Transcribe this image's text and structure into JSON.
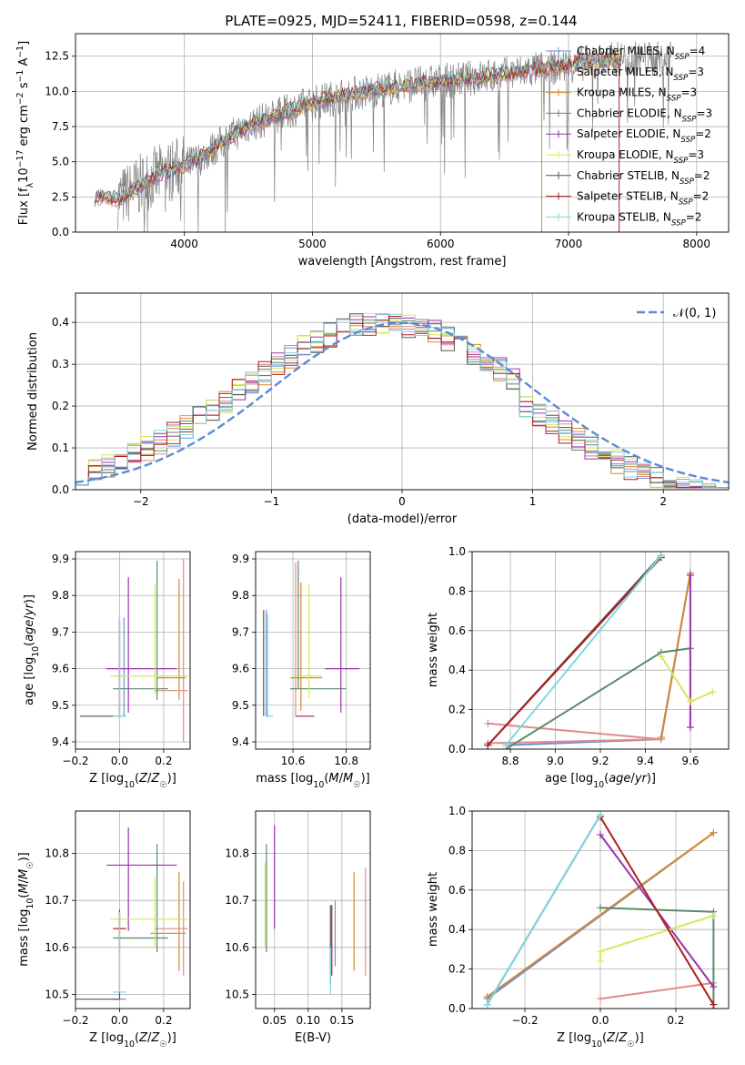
{
  "chart_data": [
    {
      "id": "spectrum",
      "type": "line",
      "title": "PLATE=0925, MJD=52411, FIBERID=0598, z=0.144",
      "xlabel": "wavelength [Angstrom, rest frame]",
      "ylabel": "Flux [f_λ 10^-17 erg cm^-2 s^-1 A^-1]",
      "xlim": [
        3150,
        8250
      ],
      "ylim": [
        0,
        14.1
      ],
      "xticks": [
        4000,
        5000,
        6000,
        7000,
        8000
      ],
      "yticks": [
        0.0,
        2.5,
        5.0,
        7.5,
        10.0,
        12.5
      ],
      "legend_position": "top-right",
      "series": [
        {
          "name": "Chabrier MILES, N_SSP=4",
          "color": "#6f8fd8"
        },
        {
          "name": "Salpeter MILES, N_SSP=3",
          "color": "#e08a8a"
        },
        {
          "name": "Kroupa MILES, N_SSP=3",
          "color": "#d7882f"
        },
        {
          "name": "Chabrier ELODIE, N_SSP=3",
          "color": "#5a8a6a"
        },
        {
          "name": "Salpeter ELODIE, N_SSP=2",
          "color": "#9a32b0"
        },
        {
          "name": "Kroupa ELODIE, N_SSP=3",
          "color": "#d6e85a"
        },
        {
          "name": "Chabrier STELIB, N_SSP=2",
          "color": "#555555"
        },
        {
          "name": "Salpeter STELIB, N_SSP=2",
          "color": "#b01e1e"
        },
        {
          "name": "Kroupa STELIB, N_SSP=2",
          "color": "#7fd8e0"
        }
      ],
      "observed": {
        "color": "#808080"
      },
      "model_x": [
        3300,
        3500,
        3700,
        3900,
        4100,
        4300,
        4500,
        4700,
        4900,
        5100,
        5300,
        5500,
        5700,
        5900,
        6100,
        6300,
        6500,
        6700,
        6900,
        7100,
        7300,
        7400
      ],
      "model_y": [
        2.5,
        2.4,
        3.6,
        4.4,
        5.1,
        6.4,
        7.6,
        8.2,
        8.9,
        9.4,
        9.8,
        10.1,
        10.4,
        10.6,
        10.8,
        11.0,
        11.2,
        11.5,
        11.7,
        12.0,
        12.2,
        12.3
      ]
    },
    {
      "id": "residuals",
      "type": "histogram",
      "xlabel": "(data-model)/error",
      "ylabel": "Normed distribution",
      "xlim": [
        -2.5,
        2.5
      ],
      "ylim": [
        0,
        0.47
      ],
      "xticks": [
        -2,
        -1,
        0,
        1,
        2
      ],
      "yticks": [
        0.0,
        0.1,
        0.2,
        0.3,
        0.4
      ],
      "reference": {
        "name": "𝒩(0, 1)",
        "mean": 0,
        "sigma": 1,
        "color": "#5a8ad6",
        "style": "dashed"
      },
      "legend_position": "top-right",
      "bin_width": 0.1
    },
    {
      "id": "age-vs-Z",
      "type": "scatter",
      "xlabel": "Z [log10(Z/Z☉)]",
      "ylabel": "age  [log10(age/yr)]",
      "xlim": [
        -0.2,
        0.32
      ],
      "ylim": [
        9.38,
        9.92
      ],
      "xticks": [
        -0.2,
        0.0,
        0.2
      ],
      "yticks": [
        9.4,
        9.5,
        9.6,
        9.7,
        9.8,
        9.9
      ],
      "points": [
        {
          "series": 0,
          "x": 0.02,
          "y": 9.47,
          "xerr": [
            0.03,
            0.01
          ],
          "yerr": [
            0.0,
            0.27
          ]
        },
        {
          "series": 1,
          "x": 0.29,
          "y": 9.54,
          "xerr": [
            0.13,
            0.02
          ],
          "yerr": [
            0.14,
            0.36
          ]
        },
        {
          "series": 2,
          "x": 0.27,
          "y": 9.575,
          "xerr": [
            0.1,
            0.03
          ],
          "yerr": [
            0.06,
            0.27
          ]
        },
        {
          "series": 3,
          "x": 0.17,
          "y": 9.545,
          "xerr": [
            0.2,
            0.05
          ],
          "yerr": [
            0.03,
            0.35
          ]
        },
        {
          "series": 4,
          "x": 0.04,
          "y": 9.6,
          "xerr": [
            0.1,
            0.22
          ],
          "yerr": [
            0.12,
            0.25
          ]
        },
        {
          "series": 5,
          "x": 0.16,
          "y": 9.58,
          "xerr": [
            0.2,
            0.15
          ],
          "yerr": [
            0.05,
            0.25
          ]
        },
        {
          "series": 6,
          "x": 0.0,
          "y": 9.47,
          "xerr": [
            0.18,
            0.0
          ],
          "yerr": [
            0.0,
            0.27
          ]
        },
        {
          "series": 7,
          "x": 0.0,
          "y": 9.47,
          "xerr": [
            0.0,
            0.0
          ],
          "yerr": [
            0.0,
            0.26
          ]
        },
        {
          "series": 8,
          "x": 0.0,
          "y": 9.47,
          "xerr": [
            0.03,
            0.03
          ],
          "yerr": [
            0.0,
            0.28
          ]
        }
      ]
    },
    {
      "id": "age-vs-mass",
      "type": "scatter",
      "xlabel": "mass [log10(M/M☉)]",
      "ylabel": "",
      "xlim": [
        10.46,
        10.89
      ],
      "ylim": [
        9.38,
        9.92
      ],
      "xticks": [
        10.6,
        10.8
      ],
      "yticks": [
        9.4,
        9.5,
        9.6,
        9.7,
        9.8,
        9.9
      ],
      "points": [
        {
          "series": 0,
          "x": 10.5,
          "y": 9.47,
          "xerr": [
            0.0,
            0.01
          ],
          "yerr": [
            0.0,
            0.29
          ]
        },
        {
          "series": 1,
          "x": 10.61,
          "y": 9.47,
          "xerr": [
            0.0,
            0.0
          ],
          "yerr": [
            0.0,
            0.42
          ]
        },
        {
          "series": 2,
          "x": 10.63,
          "y": 9.575,
          "xerr": [
            0.04,
            0.08
          ],
          "yerr": [
            0.09,
            0.26
          ]
        },
        {
          "series": 3,
          "x": 10.62,
          "y": 9.545,
          "xerr": [
            0.03,
            0.18
          ],
          "yerr": [
            0.0,
            0.35
          ]
        },
        {
          "series": 4,
          "x": 10.78,
          "y": 9.6,
          "xerr": [
            0.06,
            0.07
          ],
          "yerr": [
            0.12,
            0.25
          ]
        },
        {
          "series": 5,
          "x": 10.66,
          "y": 9.58,
          "xerr": [
            0.06,
            0.05
          ],
          "yerr": [
            0.06,
            0.25
          ]
        },
        {
          "series": 6,
          "x": 10.49,
          "y": 9.47,
          "xerr": [
            0.0,
            0.0
          ],
          "yerr": [
            0.0,
            0.29
          ]
        },
        {
          "series": 7,
          "x": 10.64,
          "y": 9.47,
          "xerr": [
            0.03,
            0.04
          ],
          "yerr": [
            0.0,
            0.0
          ]
        },
        {
          "series": 8,
          "x": 10.505,
          "y": 9.47,
          "xerr": [
            0.0,
            0.02
          ],
          "yerr": [
            0.0,
            0.28
          ]
        }
      ]
    },
    {
      "id": "weight-vs-age",
      "type": "line",
      "xlabel": "age  [log10(age/yr)]",
      "ylabel": "mass weight",
      "xlim": [
        8.63,
        9.77
      ],
      "ylim": [
        0,
        1.0
      ],
      "xticks": [
        8.8,
        9.0,
        9.2,
        9.4,
        9.6
      ],
      "yticks": [
        0.0,
        0.2,
        0.4,
        0.6,
        0.8,
        1.0
      ],
      "series": [
        {
          "series": 0,
          "x": [
            8.78,
            9.47,
            9.6
          ],
          "y": [
            0.02,
            0.05,
            0.89
          ]
        },
        {
          "series": 1,
          "x": [
            8.7,
            9.47,
            8.7
          ],
          "y": [
            0.13,
            0.05,
            0.03
          ]
        },
        {
          "series": 2,
          "x": [
            9.47,
            9.6
          ],
          "y": [
            0.06,
            0.89
          ]
        },
        {
          "series": 3,
          "x": [
            8.78,
            9.47,
            9.6
          ],
          "y": [
            0.0,
            0.49,
            0.51
          ]
        },
        {
          "series": 4,
          "x": [
            9.6,
            9.6
          ],
          "y": [
            0.88,
            0.11
          ]
        },
        {
          "series": 5,
          "x": [
            9.47,
            9.6,
            9.7
          ],
          "y": [
            0.47,
            0.24,
            0.29
          ]
        },
        {
          "series": 6,
          "x": [
            8.7,
            9.47
          ],
          "y": [
            0.02,
            0.98
          ]
        },
        {
          "series": 7,
          "x": [
            8.7,
            9.47
          ],
          "y": [
            0.02,
            0.97
          ]
        },
        {
          "series": 8,
          "x": [
            8.78,
            9.47
          ],
          "y": [
            0.02,
            0.98
          ]
        }
      ]
    },
    {
      "id": "mass-vs-Z",
      "type": "scatter",
      "xlabel": "Z [log10(Z/Z☉)]",
      "ylabel": "mass [log10(M/M☉)]",
      "xlim": [
        -0.2,
        0.32
      ],
      "ylim": [
        10.47,
        10.89
      ],
      "xticks": [
        -0.2,
        0.0,
        0.2
      ],
      "yticks": [
        10.5,
        10.6,
        10.7,
        10.8
      ],
      "points": [
        {
          "series": 0,
          "x": 0.0,
          "y": 10.49,
          "xerr": [
            0.03,
            0.03
          ],
          "yerr": [
            0.0,
            0.0
          ]
        },
        {
          "series": 1,
          "x": 0.29,
          "y": 10.64,
          "xerr": [
            0.13,
            0.02
          ],
          "yerr": [
            0.1,
            0.1
          ]
        },
        {
          "series": 2,
          "x": 0.27,
          "y": 10.63,
          "xerr": [
            0.13,
            0.03
          ],
          "yerr": [
            0.08,
            0.13
          ]
        },
        {
          "series": 3,
          "x": 0.17,
          "y": 10.62,
          "xerr": [
            0.2,
            0.05
          ],
          "yerr": [
            0.03,
            0.2
          ]
        },
        {
          "series": 4,
          "x": 0.04,
          "y": 10.775,
          "xerr": [
            0.1,
            0.22
          ],
          "yerr": [
            0.14,
            0.08
          ]
        },
        {
          "series": 5,
          "x": 0.16,
          "y": 10.66,
          "xerr": [
            0.2,
            0.15
          ],
          "yerr": [
            0.06,
            0.09
          ]
        },
        {
          "series": 6,
          "x": 0.0,
          "y": 10.49,
          "xerr": [
            0.2,
            0.0
          ],
          "yerr": [
            0.0,
            0.18
          ]
        },
        {
          "series": 7,
          "x": 0.0,
          "y": 10.64,
          "xerr": [
            0.03,
            0.03
          ],
          "yerr": [
            0.04,
            0.04
          ]
        },
        {
          "series": 8,
          "x": 0.0,
          "y": 10.505,
          "xerr": [
            0.03,
            0.03
          ],
          "yerr": [
            0.0,
            0.17
          ]
        }
      ]
    },
    {
      "id": "mass-vs-ebv",
      "type": "scatter",
      "xlabel": "E(B-V)",
      "ylabel": "",
      "xlim": [
        0.022,
        0.192
      ],
      "ylim": [
        10.47,
        10.89
      ],
      "xticks": [
        0.05,
        0.1,
        0.15
      ],
      "yticks": [
        10.5,
        10.6,
        10.7,
        10.8
      ],
      "points": [
        {
          "series": 0,
          "x": 0.14,
          "y": 10.6,
          "xerr": [
            0,
            0
          ],
          "yerr": [
            0.04,
            0.1
          ]
        },
        {
          "series": 1,
          "x": 0.185,
          "y": 10.64,
          "xerr": [
            0,
            0
          ],
          "yerr": [
            0.1,
            0.13
          ]
        },
        {
          "series": 2,
          "x": 0.168,
          "y": 10.63,
          "xerr": [
            0,
            0
          ],
          "yerr": [
            0.08,
            0.13
          ]
        },
        {
          "series": 3,
          "x": 0.038,
          "y": 10.7,
          "xerr": [
            0,
            0
          ],
          "yerr": [
            0.11,
            0.12
          ]
        },
        {
          "series": 4,
          "x": 0.05,
          "y": 10.8,
          "xerr": [
            0,
            0
          ],
          "yerr": [
            0.16,
            0.06
          ]
        },
        {
          "series": 5,
          "x": 0.036,
          "y": 10.7,
          "xerr": [
            0,
            0
          ],
          "yerr": [
            0.1,
            0.08
          ]
        },
        {
          "series": 6,
          "x": 0.133,
          "y": 10.62,
          "xerr": [
            0,
            0
          ],
          "yerr": [
            0.1,
            0.07
          ]
        },
        {
          "series": 7,
          "x": 0.135,
          "y": 10.64,
          "xerr": [
            0,
            0
          ],
          "yerr": [
            0.1,
            0.05
          ]
        },
        {
          "series": 8,
          "x": 0.133,
          "y": 10.55,
          "xerr": [
            0,
            0
          ],
          "yerr": [
            0.05,
            0.05
          ]
        }
      ]
    },
    {
      "id": "weight-vs-Z",
      "type": "line",
      "xlabel": "Z [log10(Z/Z☉)]",
      "ylabel": "mass weight",
      "xlim": [
        -0.34,
        0.34
      ],
      "ylim": [
        0,
        1.0
      ],
      "xticks": [
        -0.2,
        0.0,
        0.2
      ],
      "yticks": [
        0.0,
        0.2,
        0.4,
        0.6,
        0.8,
        1.0
      ],
      "series": [
        {
          "series": 0,
          "x": [
            -0.3,
            0.3
          ],
          "y": [
            0.05,
            0.89
          ]
        },
        {
          "series": 1,
          "x": [
            0.0,
            0.3
          ],
          "y": [
            0.05,
            0.13
          ]
        },
        {
          "series": 2,
          "x": [
            -0.3,
            0.3
          ],
          "y": [
            0.06,
            0.89
          ]
        },
        {
          "series": 3,
          "x": [
            0.0,
            0.3,
            0.3
          ],
          "y": [
            0.51,
            0.49,
            0.0
          ]
        },
        {
          "series": 4,
          "x": [
            0.0,
            0.3
          ],
          "y": [
            0.88,
            0.11
          ]
        },
        {
          "series": 5,
          "x": [
            0.0,
            0.0,
            0.3
          ],
          "y": [
            0.24,
            0.29,
            0.47
          ]
        },
        {
          "series": 6,
          "x": [
            -0.3,
            0.0
          ],
          "y": [
            0.02,
            0.98
          ]
        },
        {
          "series": 7,
          "x": [
            0.0,
            0.3
          ],
          "y": [
            0.97,
            0.02
          ]
        },
        {
          "series": 8,
          "x": [
            -0.3,
            0.0
          ],
          "y": [
            0.02,
            0.98
          ]
        }
      ]
    }
  ]
}
